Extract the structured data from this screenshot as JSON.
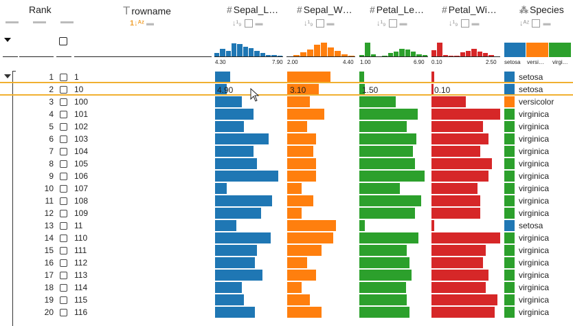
{
  "columns": {
    "rank": {
      "title": "Rank"
    },
    "rowname": {
      "title": "rowname",
      "icon": "text-type-icon"
    },
    "sepal_length": {
      "title": "Sepal_L…",
      "color": "#1f77b4",
      "axis_min": "4.30",
      "axis_max": "7.90"
    },
    "sepal_width": {
      "title": "Sepal_W…",
      "color": "#ff7f0e",
      "axis_min": "2.00",
      "axis_max": "4.40"
    },
    "petal_length": {
      "title": "Petal_Le…",
      "color": "#2ca02c",
      "axis_min": "1.00",
      "axis_max": "6.90"
    },
    "petal_width": {
      "title": "Petal_Wi…",
      "color": "#d62728",
      "axis_min": "0.10",
      "axis_max": "2.50"
    },
    "species": {
      "title": "Species",
      "categories": [
        "setosa",
        "versi…",
        "virgi…"
      ],
      "colors": {
        "setosa": "#1f77b4",
        "versicolor": "#ff7f0e",
        "virginica": "#2ca02c"
      }
    }
  },
  "hist": {
    "sepal_length": [
      0.25,
      0.55,
      0.4,
      0.9,
      0.85,
      0.7,
      0.6,
      0.4,
      0.25,
      0.15,
      0.15,
      0.1
    ],
    "sepal_width": [
      0.05,
      0.15,
      0.3,
      0.5,
      0.8,
      0.95,
      0.65,
      0.4,
      0.2,
      0.1
    ],
    "petal_length": [
      0.15,
      0.95,
      0.2,
      0.0,
      0.1,
      0.25,
      0.35,
      0.55,
      0.5,
      0.35,
      0.2,
      0.15
    ],
    "petal_width": [
      0.45,
      0.95,
      0.15,
      0.1,
      0.1,
      0.3,
      0.4,
      0.55,
      0.35,
      0.25,
      0.15,
      0.05
    ]
  },
  "highlight_values": {
    "sepal_length": "4.90",
    "sepal_width": "3.10",
    "petal_length": "1.50",
    "petal_width": "0.10"
  },
  "rows": [
    {
      "rank": "1",
      "name": "1",
      "sl": 5.1,
      "sw": 3.5,
      "pl": 1.4,
      "pw": 0.2,
      "species": "setosa"
    },
    {
      "rank": "2",
      "name": "10",
      "sl": 4.9,
      "sw": 3.1,
      "pl": 1.5,
      "pw": 0.1,
      "species": "setosa"
    },
    {
      "rank": "3",
      "name": "100",
      "sl": 5.7,
      "sw": 2.8,
      "pl": 4.1,
      "pw": 1.3,
      "species": "versicolor"
    },
    {
      "rank": "4",
      "name": "101",
      "sl": 6.3,
      "sw": 3.3,
      "pl": 6.0,
      "pw": 2.5,
      "species": "virginica"
    },
    {
      "rank": "5",
      "name": "102",
      "sl": 5.8,
      "sw": 2.7,
      "pl": 5.1,
      "pw": 1.9,
      "species": "virginica"
    },
    {
      "rank": "6",
      "name": "103",
      "sl": 7.1,
      "sw": 3.0,
      "pl": 5.9,
      "pw": 2.1,
      "species": "virginica"
    },
    {
      "rank": "7",
      "name": "104",
      "sl": 6.3,
      "sw": 2.9,
      "pl": 5.6,
      "pw": 1.8,
      "species": "virginica"
    },
    {
      "rank": "8",
      "name": "105",
      "sl": 6.5,
      "sw": 3.0,
      "pl": 5.8,
      "pw": 2.2,
      "species": "virginica"
    },
    {
      "rank": "9",
      "name": "106",
      "sl": 7.6,
      "sw": 3.0,
      "pl": 6.6,
      "pw": 2.1,
      "species": "virginica"
    },
    {
      "rank": "10",
      "name": "107",
      "sl": 4.9,
      "sw": 2.5,
      "pl": 4.5,
      "pw": 1.7,
      "species": "virginica"
    },
    {
      "rank": "11",
      "name": "108",
      "sl": 7.3,
      "sw": 2.9,
      "pl": 6.3,
      "pw": 1.8,
      "species": "virginica"
    },
    {
      "rank": "12",
      "name": "109",
      "sl": 6.7,
      "sw": 2.5,
      "pl": 5.8,
      "pw": 1.8,
      "species": "virginica"
    },
    {
      "rank": "13",
      "name": "11",
      "sl": 5.4,
      "sw": 3.7,
      "pl": 1.5,
      "pw": 0.2,
      "species": "setosa"
    },
    {
      "rank": "14",
      "name": "110",
      "sl": 7.2,
      "sw": 3.6,
      "pl": 6.1,
      "pw": 2.5,
      "species": "virginica"
    },
    {
      "rank": "15",
      "name": "111",
      "sl": 6.5,
      "sw": 3.2,
      "pl": 5.1,
      "pw": 2.0,
      "species": "virginica"
    },
    {
      "rank": "16",
      "name": "112",
      "sl": 6.4,
      "sw": 2.7,
      "pl": 5.3,
      "pw": 1.9,
      "species": "virginica"
    },
    {
      "rank": "17",
      "name": "113",
      "sl": 6.8,
      "sw": 3.0,
      "pl": 5.5,
      "pw": 2.1,
      "species": "virginica"
    },
    {
      "rank": "18",
      "name": "114",
      "sl": 5.7,
      "sw": 2.5,
      "pl": 5.0,
      "pw": 2.0,
      "species": "virginica"
    },
    {
      "rank": "19",
      "name": "115",
      "sl": 5.8,
      "sw": 2.8,
      "pl": 5.1,
      "pw": 2.4,
      "species": "virginica"
    },
    {
      "rank": "20",
      "name": "116",
      "sl": 6.4,
      "sw": 3.2,
      "pl": 5.3,
      "pw": 2.3,
      "species": "virginica"
    }
  ]
}
